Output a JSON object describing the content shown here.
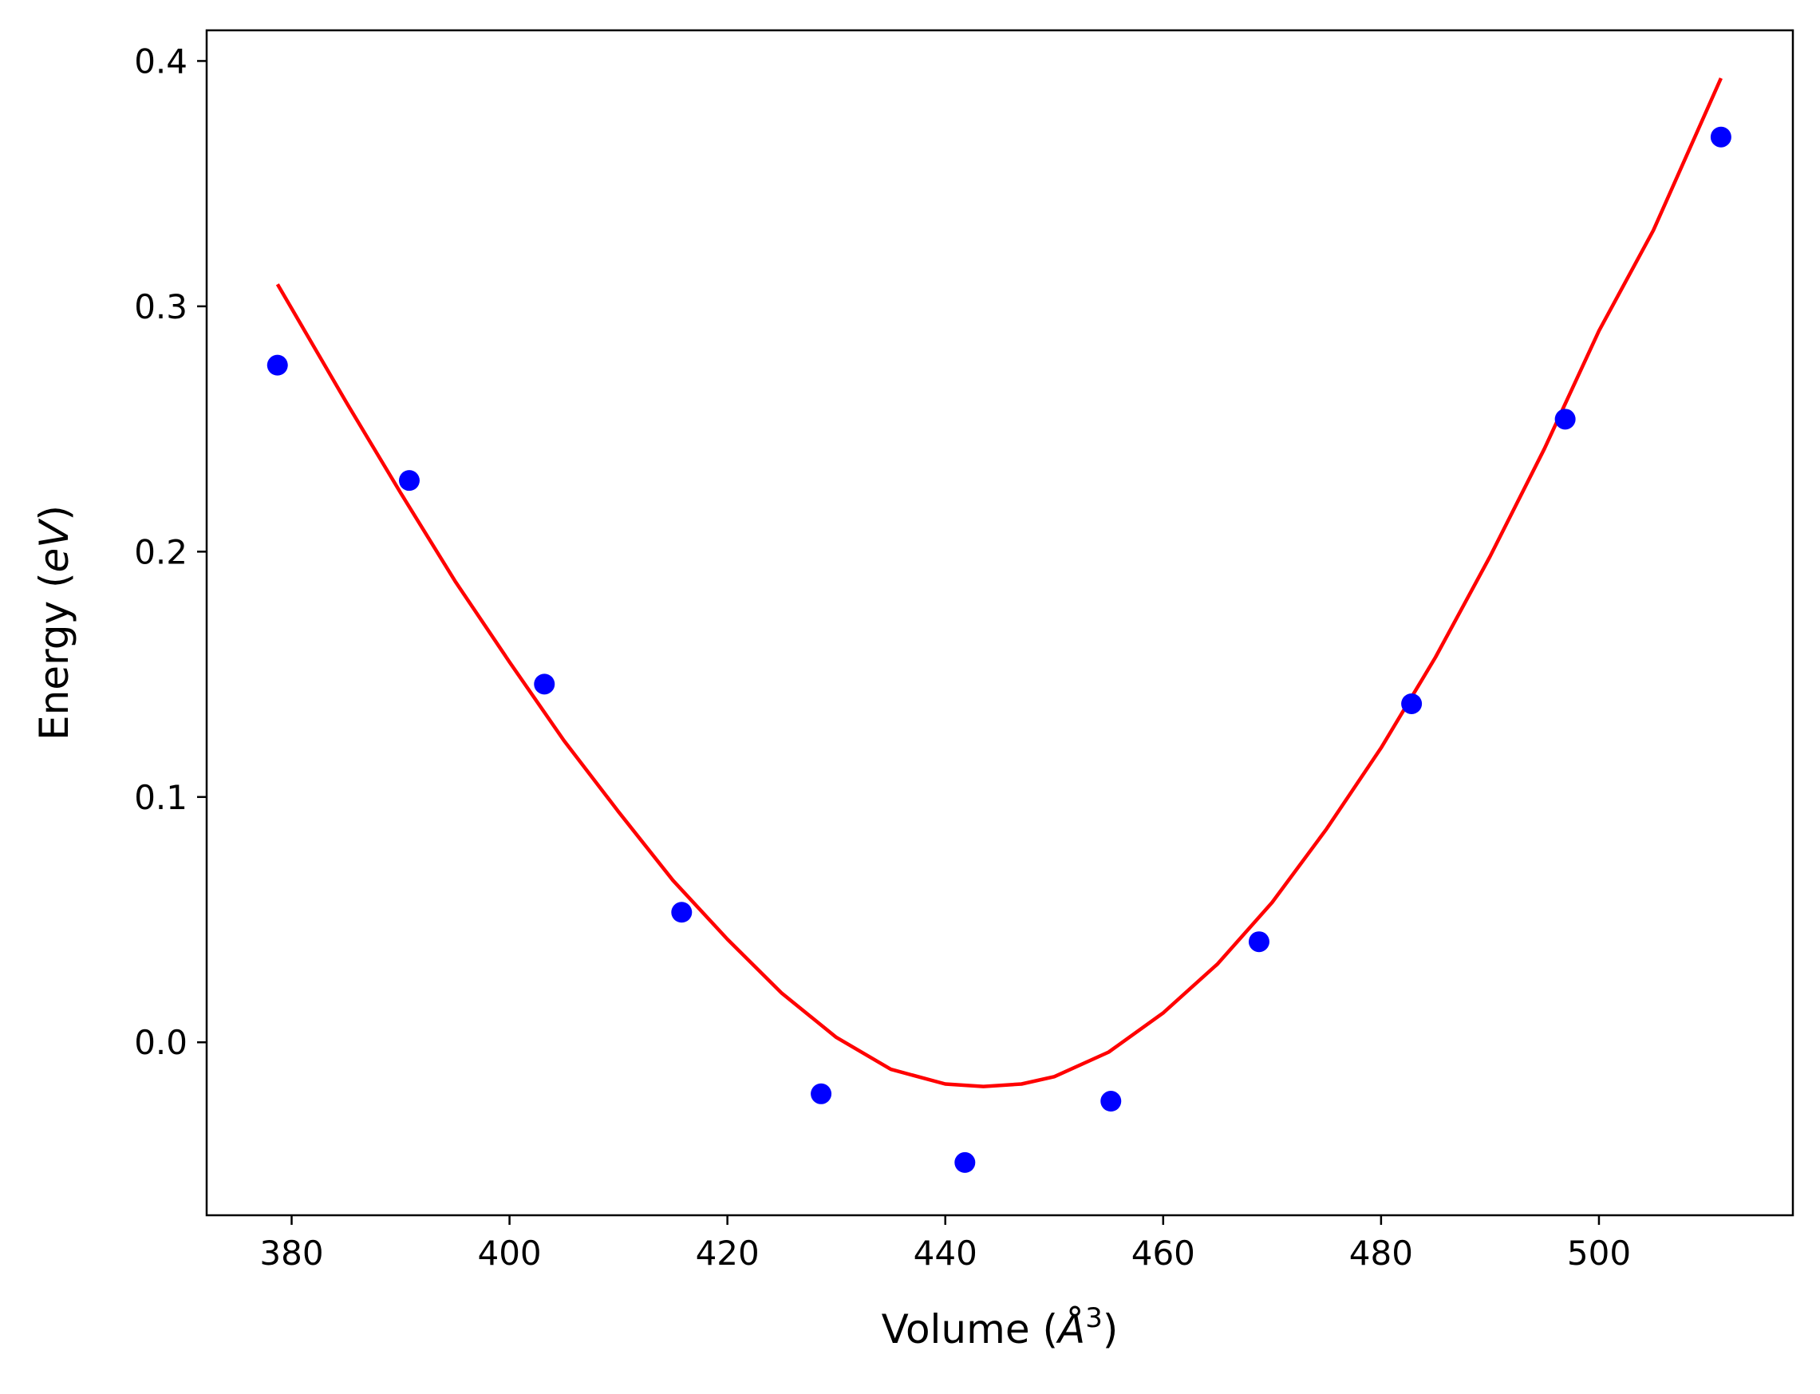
{
  "chart_data": {
    "type": "scatter",
    "xlabel": "Volume (Å3)",
    "xlabel_parts": {
      "prefix": "Volume (",
      "symbol": "Å",
      "exponent": "3",
      "suffix": ")"
    },
    "ylabel": "Energy (eV)",
    "ylabel_parts": {
      "prefix": "Energy (",
      "unit": "eV",
      "suffix": ")"
    },
    "xlim": [
      372.2,
      517.8
    ],
    "ylim": [
      -0.0705,
      0.4125
    ],
    "xticks": [
      380,
      400,
      420,
      440,
      460,
      480,
      500
    ],
    "xtick_labels": [
      "380",
      "400",
      "420",
      "440",
      "460",
      "480",
      "500"
    ],
    "yticks": [
      0.0,
      0.1,
      0.2,
      0.3,
      0.4
    ],
    "ytick_labels": [
      "0.0",
      "0.1",
      "0.2",
      "0.3",
      "0.4"
    ],
    "grid": false,
    "series": [
      {
        "type": "scatter",
        "color": "#0000ff",
        "x": [
          378.7,
          390.8,
          403.2,
          415.8,
          428.6,
          441.8,
          455.2,
          468.8,
          482.8,
          496.9,
          511.2
        ],
        "y": [
          0.276,
          0.229,
          0.146,
          0.053,
          -0.021,
          -0.049,
          -0.024,
          0.041,
          0.138,
          0.254,
          0.369
        ]
      },
      {
        "type": "line",
        "color": "#ff0000",
        "x": [
          378.7,
          385,
          390,
          395,
          400,
          405,
          410,
          415,
          420,
          425,
          430,
          435,
          440,
          443.5,
          447,
          450,
          455,
          460,
          465,
          470,
          475,
          480,
          485,
          490,
          495,
          500,
          505,
          511.2
        ],
        "y": [
          0.309,
          0.261,
          0.224,
          0.188,
          0.155,
          0.123,
          0.094,
          0.066,
          0.042,
          0.02,
          0.002,
          -0.011,
          -0.017,
          -0.018,
          -0.017,
          -0.014,
          -0.004,
          0.012,
          0.032,
          0.057,
          0.087,
          0.12,
          0.157,
          0.198,
          0.242,
          0.29,
          0.331,
          0.393
        ]
      }
    ]
  }
}
